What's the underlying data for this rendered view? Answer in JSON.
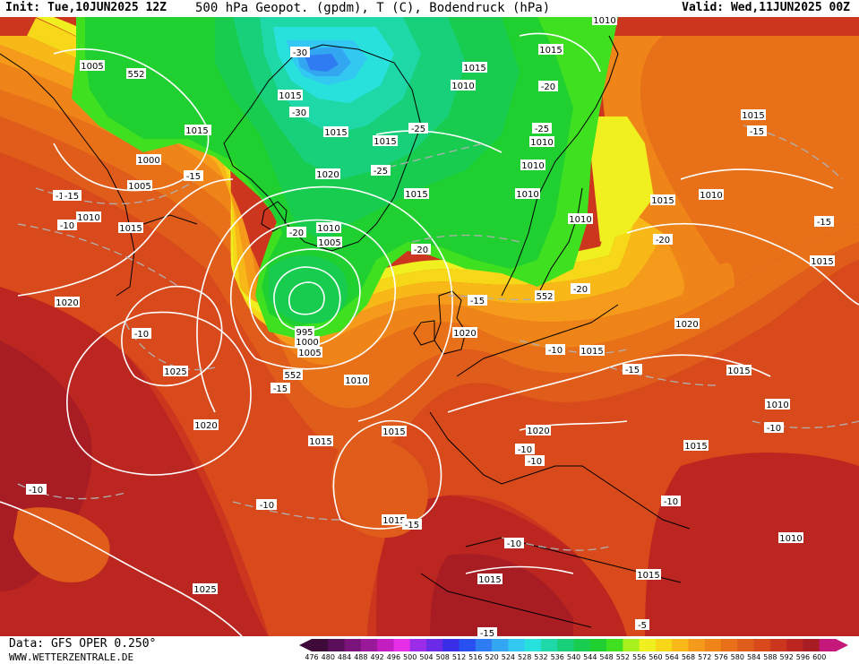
{
  "header": {
    "init": "Init: Tue,10JUN2025 12Z",
    "title": "500 hPa Geopot. (gpdm), T (C), Bodendruck (hPa)",
    "valid": "Valid: Wed,11JUN2025 00Z"
  },
  "footer": {
    "data_source": "Data: GFS OPER 0.250°",
    "website": "WWW.WETTERZENTRALE.DE"
  },
  "colors": {
    "c476": "#3d0a3a",
    "c480": "#5a0e5a",
    "c484": "#7a137a",
    "c488": "#9a189a",
    "c492": "#c21ec2",
    "c496": "#e62ee6",
    "c500": "#9b2de8",
    "c504": "#6a2ae6",
    "c508": "#3a2fe8",
    "c512": "#2850f0",
    "c516": "#2f7cf2",
    "c520": "#33a6f2",
    "c524": "#33c8f2",
    "c528": "#28e0dc",
    "c532": "#1ed8a8",
    "c536": "#18d07a",
    "c540": "#18cc50",
    "c544": "#20d030",
    "c548": "#3ee020",
    "c552": "#a8f020",
    "c556": "#f0f020",
    "c560": "#f7d818",
    "c564": "#f7b818",
    "c568": "#f59a1a",
    "c572": "#ef8418",
    "c576": "#e87018",
    "c580": "#e05c1a",
    "c584": "#d84a1c",
    "c588": "#cc361e",
    "c592": "#bc2620",
    "c596": "#a81c24",
    "c600": "#c4187a",
    "contour": "#ffffff",
    "isotherm": "#b0b0b0",
    "coast": "#000000"
  },
  "colorbar": {
    "values": [
      "476",
      "480",
      "484",
      "488",
      "492",
      "496",
      "500",
      "504",
      "508",
      "512",
      "516",
      "520",
      "524",
      "528",
      "532",
      "536",
      "540",
      "544",
      "548",
      "552",
      "556",
      "560",
      "564",
      "568",
      "572",
      "576",
      "580",
      "584",
      "588",
      "592",
      "596",
      "600"
    ]
  },
  "map_labels": {
    "pressure": [
      {
        "text": "1005"
      },
      {
        "text": "552"
      },
      {
        "text": "1010"
      },
      {
        "text": "1000"
      },
      {
        "text": "1005"
      },
      {
        "text": "1010"
      },
      {
        "text": "1015"
      },
      {
        "text": "1020"
      },
      {
        "text": "1025"
      },
      {
        "text": "1020"
      },
      {
        "text": "1015"
      },
      {
        "text": "1020"
      },
      {
        "text": "1015"
      },
      {
        "text": "1025"
      },
      {
        "text": "1015"
      },
      {
        "text": "1010"
      },
      {
        "text": "1015"
      },
      {
        "text": "1020"
      },
      {
        "text": "1010"
      },
      {
        "text": "1005"
      },
      {
        "text": "995"
      },
      {
        "text": "1000"
      },
      {
        "text": "1005"
      },
      {
        "text": "552"
      },
      {
        "text": "1010"
      },
      {
        "text": "1015"
      },
      {
        "text": "1015"
      },
      {
        "text": "1015"
      },
      {
        "text": "1020"
      },
      {
        "text": "1015"
      },
      {
        "text": "1015"
      },
      {
        "text": "1010"
      },
      {
        "text": "1005"
      },
      {
        "text": "1010"
      },
      {
        "text": "1010"
      },
      {
        "text": "1010"
      },
      {
        "text": "1015"
      },
      {
        "text": "552"
      },
      {
        "text": "1020"
      },
      {
        "text": "1015"
      },
      {
        "text": "1015"
      },
      {
        "text": "1015"
      },
      {
        "text": "1010"
      },
      {
        "text": "1015"
      },
      {
        "text": "1010"
      },
      {
        "text": "1015"
      },
      {
        "text": "1010"
      },
      {
        "text": "1015"
      },
      {
        "text": "1015"
      },
      {
        "text": "1010"
      },
      {
        "text": "1015"
      }
    ],
    "temperature": [
      {
        "text": "-15"
      },
      {
        "text": "-10"
      },
      {
        "text": "-15"
      },
      {
        "text": "-10"
      },
      {
        "text": "-15"
      },
      {
        "text": "-10"
      },
      {
        "text": "-10"
      },
      {
        "text": "-15"
      },
      {
        "text": "-30"
      },
      {
        "text": "-25"
      },
      {
        "text": "-20"
      },
      {
        "text": "-30"
      },
      {
        "text": "-25"
      },
      {
        "text": "-20"
      },
      {
        "text": "-20"
      },
      {
        "text": "-25"
      },
      {
        "text": "-20"
      },
      {
        "text": "-15"
      },
      {
        "text": "-10"
      },
      {
        "text": "-15"
      },
      {
        "text": "-20"
      },
      {
        "text": "-15"
      },
      {
        "text": "-15"
      },
      {
        "text": "-10"
      },
      {
        "text": "-10"
      },
      {
        "text": "-10"
      },
      {
        "text": "-10"
      },
      {
        "text": "-10"
      },
      {
        "text": "-15"
      },
      {
        "text": "-5"
      },
      {
        "text": "-10"
      },
      {
        "text": "-10"
      },
      {
        "text": "-15"
      }
    ]
  }
}
